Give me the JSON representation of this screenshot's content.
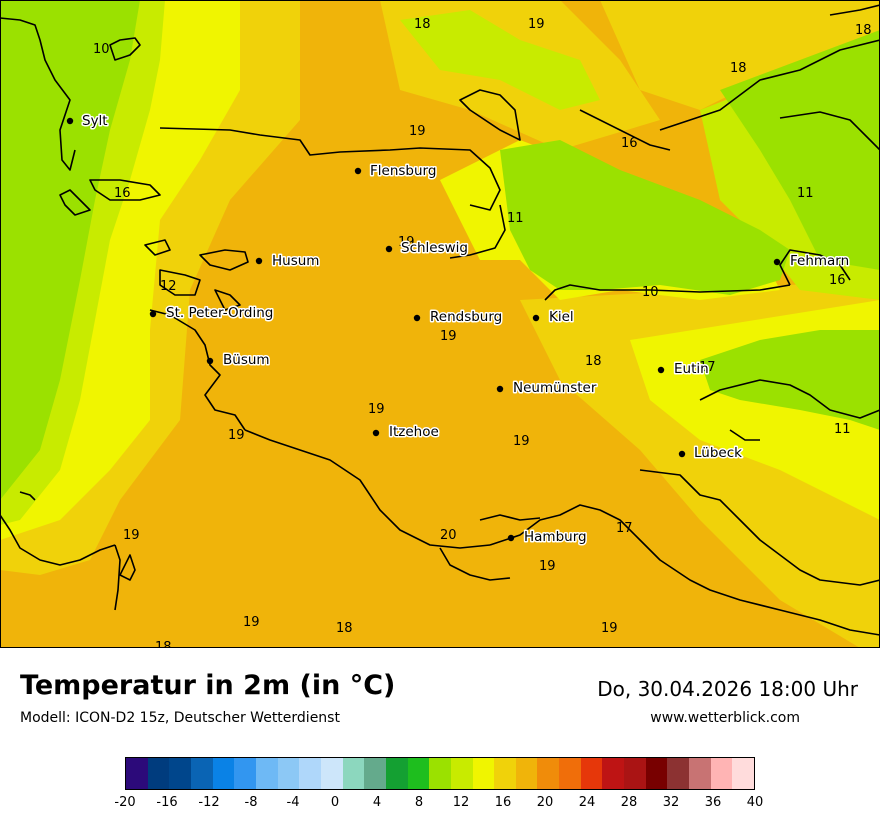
{
  "title": "Temperatur in 2m (in °C)",
  "model": "Modell: ICON-D2 15z, Deutscher Wetterdienst",
  "datetime": "Do, 30.04.2026 18:00 Uhr",
  "website": "www.wetterblick.com",
  "cities": [
    "Sylt",
    "Flensburg",
    "Husum",
    "Schleswig",
    "St. Peter-Ording",
    "Rendsburg",
    "Kiel",
    "Fehmarn",
    "Büsum",
    "Neumünster",
    "Eutin",
    "Itzehoe",
    "Lübeck",
    "Hamburg"
  ],
  "values": [
    "10",
    "18",
    "19",
    "18",
    "18",
    "19",
    "16",
    "16",
    "11",
    "11",
    "19",
    "12",
    "10",
    "16",
    "19",
    "18",
    "17",
    "19",
    "19",
    "19",
    "11",
    "20",
    "17",
    "19",
    "19",
    "19",
    "18",
    "18",
    "19"
  ],
  "legend": {
    "colors": [
      "#2c0a7a",
      "#003c7e",
      "#00468c",
      "#0a64b4",
      "#0a82e6",
      "#3296f0",
      "#6eb9f5",
      "#8cc8f5",
      "#afd7fa",
      "#cde6fa",
      "#8cd7be",
      "#64aa8c",
      "#14a032",
      "#1ebe1e",
      "#9be100",
      "#c8eb00",
      "#f0f500",
      "#f0d20a",
      "#f0b40a",
      "#f08c0a",
      "#f06e0a",
      "#e6370a",
      "#be1414",
      "#aa1414",
      "#780000",
      "#8c3232",
      "#c87373",
      "#ffb4b4",
      "#ffdcdc"
    ],
    "ticks": [
      "-20",
      "-16",
      "-12",
      "-8",
      "-4",
      "0",
      "4",
      "8",
      "12",
      "16",
      "20",
      "24",
      "28",
      "32",
      "36",
      "40"
    ]
  }
}
